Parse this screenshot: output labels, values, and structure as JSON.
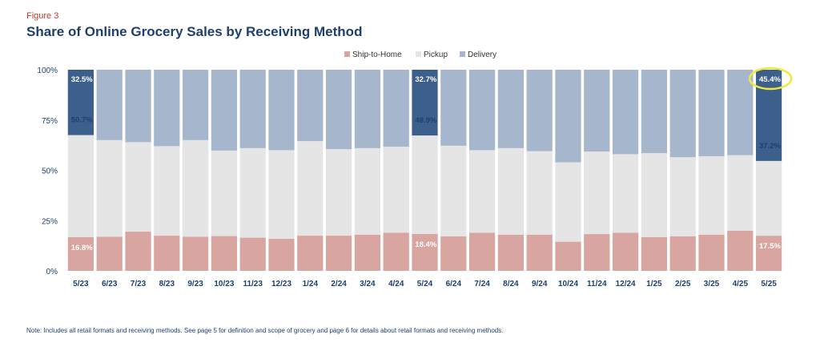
{
  "figure_label": "Figure 3",
  "title": "Share of Online Grocery Sales by Receiving Method",
  "note": "Note: Includes all retail formats and receiving methods. See page 5 for definition and scope of grocery and page 6 for details about retail formats and receiving methods.",
  "colors": {
    "ship": "#d9a5a0",
    "pickup": "#e5e5e5",
    "delivery": "#a6b7cd",
    "highlight": "#3d5f8c",
    "circle": "#f0e83a"
  },
  "chart_data": {
    "type": "bar",
    "stacked": true,
    "categories": [
      "5/23",
      "6/23",
      "7/23",
      "8/23",
      "9/23",
      "10/23",
      "11/23",
      "12/23",
      "1/24",
      "2/24",
      "3/24",
      "4/24",
      "5/24",
      "6/24",
      "7/24",
      "8/24",
      "9/24",
      "10/24",
      "11/24",
      "12/24",
      "1/25",
      "2/25",
      "3/25",
      "4/25",
      "5/25"
    ],
    "series": [
      {
        "name": "Ship-to-Home",
        "values": [
          16.8,
          17,
          19.5,
          17.5,
          17,
          17.3,
          16.5,
          16,
          17.5,
          17.5,
          18,
          19,
          18.4,
          17.2,
          19,
          18,
          18,
          14.5,
          18.3,
          19,
          16.8,
          17.2,
          18,
          20,
          17.5
        ]
      },
      {
        "name": "Pickup",
        "values": [
          50.7,
          48,
          44.5,
          44.5,
          48,
          42.5,
          44.5,
          44,
          47,
          43,
          43,
          42.7,
          48.9,
          45,
          41,
          43,
          41.5,
          39.5,
          41,
          39,
          41.7,
          39.3,
          39,
          37.5,
          37.2
        ]
      },
      {
        "name": "Delivery",
        "values": [
          32.5,
          35,
          36,
          38,
          35,
          40.2,
          39,
          40,
          35.5,
          39.5,
          39,
          38.3,
          32.7,
          37.8,
          40,
          39,
          40.5,
          46,
          40.7,
          42,
          41.5,
          43.5,
          43,
          42.5,
          45.4
        ]
      }
    ],
    "highlighted_categories": [
      "5/23",
      "5/24",
      "5/25"
    ],
    "data_labels": [
      {
        "category": "5/23",
        "ship": "16.8%",
        "pickup": "50.7%",
        "delivery": "32.5%"
      },
      {
        "category": "5/24",
        "ship": "18.4%",
        "pickup": "48.9%",
        "delivery": "32.7%"
      },
      {
        "category": "5/25",
        "ship": "17.5%",
        "pickup": "37.2%",
        "delivery": "45.4%"
      }
    ],
    "circled_label": "45.4%",
    "yticks": [
      "0%",
      "25%",
      "50%",
      "75%",
      "100%"
    ],
    "ylim": [
      0,
      100
    ],
    "legend": "top-center",
    "grid": false
  }
}
